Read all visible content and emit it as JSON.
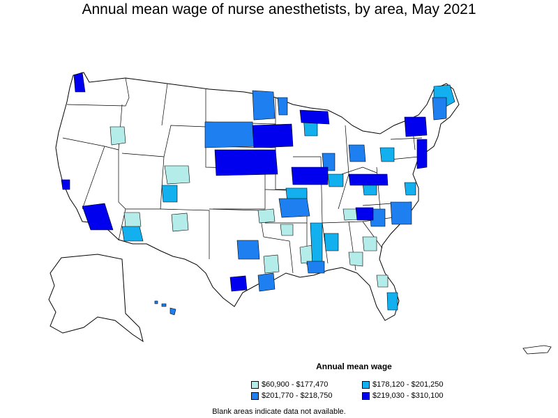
{
  "title": "Annual mean wage of nurse anesthetists, by area, May 2021",
  "legend": {
    "title": "Annual mean wage",
    "items": [
      {
        "label": "$60,900 - $177,470",
        "color": "#b3ece8"
      },
      {
        "label": "$178,120 - $201,250",
        "color": "#13b0f0"
      },
      {
        "label": "$201,770 - $218,750",
        "color": "#1e80f0"
      },
      {
        "label": "$219,030 - $310,100",
        "color": "#0000ee"
      }
    ]
  },
  "note": "Blank areas indicate data not available."
}
